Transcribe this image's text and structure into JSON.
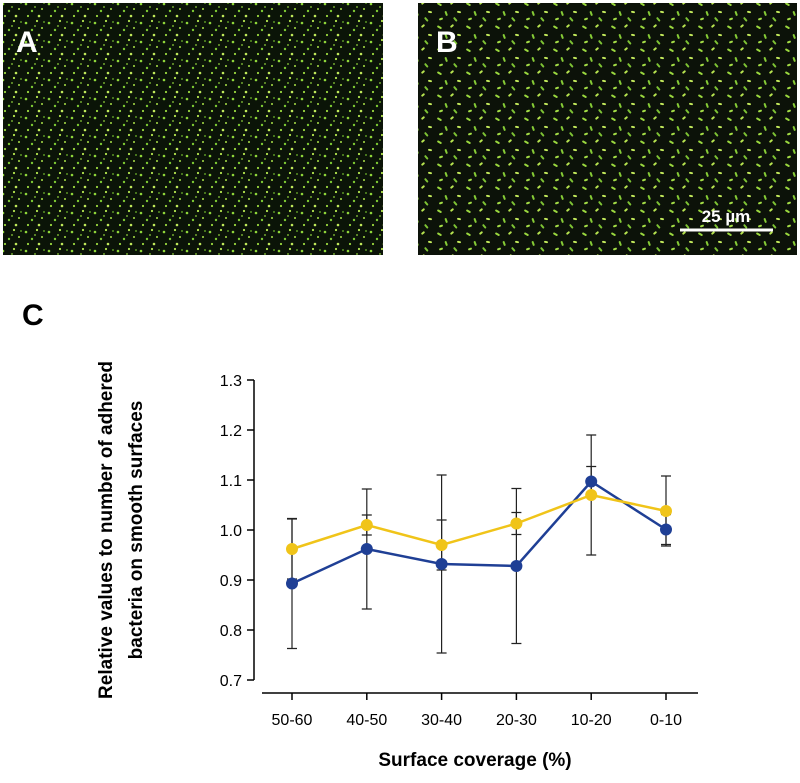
{
  "panels": {
    "a": {
      "label": "A"
    },
    "b": {
      "label": "B",
      "scale_bar": "25 µm"
    }
  },
  "chart_data": {
    "type": "line",
    "panel_label": "C",
    "y_label": [
      "Relative values to number of adhered",
      "bacteria on smooth surfaces"
    ],
    "x_label": "Surface coverage (%)",
    "categories": [
      "50-60",
      "40-50",
      "30-40",
      "20-30",
      "10-20",
      "0-10"
    ],
    "series": [
      {
        "color": "#1f3f95",
        "values": [
          0.893,
          0.962,
          0.932,
          0.928,
          1.097,
          1.001
        ],
        "errors": [
          0.13,
          0.12,
          0.178,
          0.155,
          0.03,
          0.03
        ]
      },
      {
        "color": "#f0c419",
        "values": [
          0.962,
          1.01,
          0.97,
          1.013,
          1.07,
          1.038
        ],
        "errors": [
          0.06,
          0.02,
          0.05,
          0.022,
          0.12,
          0.07
        ]
      }
    ],
    "ylim": [
      0.7,
      1.3
    ],
    "yticks": [
      0.7,
      0.8,
      0.9,
      {
        "value": 1.0,
        "label": "1.0"
      },
      1.1,
      1.2,
      1.3
    ],
    "grid": false
  }
}
